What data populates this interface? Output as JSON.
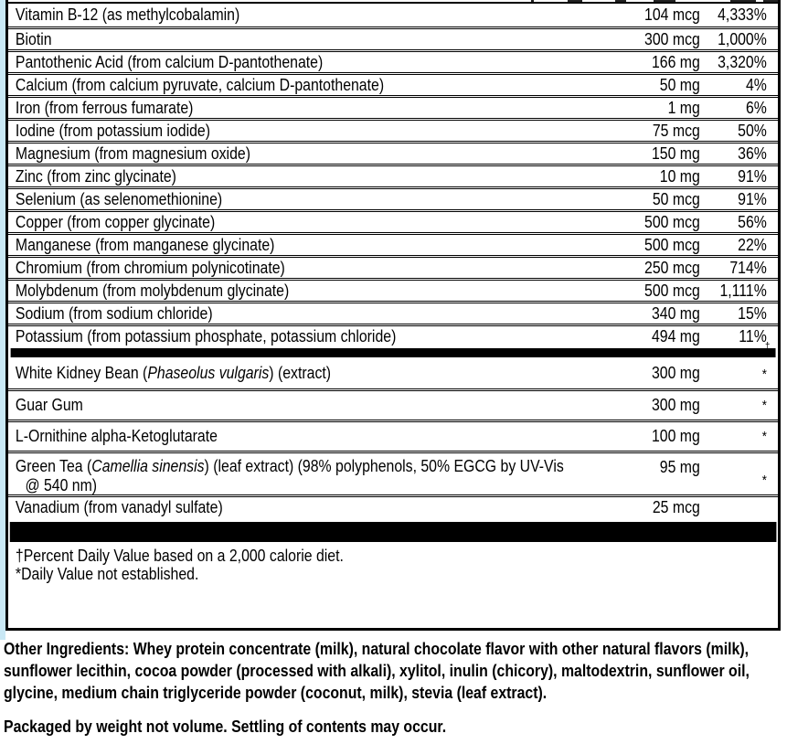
{
  "colors": {
    "accent_blue": "#c9e8f5",
    "bar": "#000000"
  },
  "supplement_facts": {
    "nutrient_rows": [
      {
        "name": [
          {
            "t": "Vitamin B-12 (as methylcobalamin)"
          }
        ],
        "amount": "104 mcg",
        "dv": "4,333%"
      },
      {
        "name": [
          {
            "t": "Biotin"
          }
        ],
        "amount": "300 mcg",
        "dv": "1,000%"
      },
      {
        "name": [
          {
            "t": "Pantothenic Acid (from calcium D-pantothenate)"
          }
        ],
        "amount": "166 mg",
        "dv": "3,320%"
      },
      {
        "name": [
          {
            "t": "Calcium (from calcium pyruvate, calcium D-pantothenate)"
          }
        ],
        "amount": "50 mg",
        "dv": "4%"
      },
      {
        "name": [
          {
            "t": "Iron (from ferrous fumarate)"
          }
        ],
        "amount": "1 mg",
        "dv": "6%"
      },
      {
        "name": [
          {
            "t": "Iodine (from potassium iodide)"
          }
        ],
        "amount": "75 mcg",
        "dv": "50%"
      },
      {
        "name": [
          {
            "t": "Magnesium (from magnesium oxide)"
          }
        ],
        "amount": "150 mg",
        "dv": "36%"
      },
      {
        "name": [
          {
            "t": "Zinc (from zinc glycinate)"
          }
        ],
        "amount": "10 mg",
        "dv": "91%"
      },
      {
        "name": [
          {
            "t": "Selenium (as selenomethionine)"
          }
        ],
        "amount": "50 mcg",
        "dv": "91%"
      },
      {
        "name": [
          {
            "t": "Copper (from copper glycinate)"
          }
        ],
        "amount": "500 mcg",
        "dv": "56%"
      },
      {
        "name": [
          {
            "t": "Manganese (from manganese glycinate)"
          }
        ],
        "amount": "500 mcg",
        "dv": "22%"
      },
      {
        "name": [
          {
            "t": "Chromium (from chromium polynicotinate)"
          }
        ],
        "amount": "250 mcg",
        "dv": "714%"
      },
      {
        "name": [
          {
            "t": "Molybdenum (from molybdenum glycinate)"
          }
        ],
        "amount": "500 mcg",
        "dv": "1,111%"
      },
      {
        "name": [
          {
            "t": "Sodium (from sodium chloride)"
          }
        ],
        "amount": "340 mg",
        "dv": "15%"
      },
      {
        "name": [
          {
            "t": "Potassium (from potassium phosphate, potassium chloride)"
          }
        ],
        "amount": "494 mg",
        "dv": "11%",
        "marker": "†"
      }
    ],
    "botanical_rows": [
      {
        "name": [
          {
            "t": "White Kidney Bean ("
          },
          {
            "t": "Phaseolus vulgaris",
            "i": true
          },
          {
            "t": ") (extract)"
          }
        ],
        "amount": "300 mg",
        "dv": "*",
        "star": true,
        "tall": true
      },
      {
        "name": [
          {
            "t": "Guar Gum"
          }
        ],
        "amount": "300 mg",
        "dv": "*",
        "star": true,
        "tall": true
      },
      {
        "name": [
          {
            "t": "L-Ornithine alpha-Ketoglutarate"
          }
        ],
        "amount": "100 mg",
        "dv": "*",
        "star": true,
        "tall": true
      },
      {
        "name": [
          {
            "t": "Green Tea ("
          },
          {
            "t": "Camellia sinensis",
            "i": true
          },
          {
            "t": ") (leaf extract) (98% polyphenols, 50% EGCG by UV-Vis"
          },
          {
            "br": true
          },
          {
            "t": "@ 540 nm)",
            "indent": true
          }
        ],
        "amount": "95 mg",
        "dv": "*",
        "star": true,
        "wrap": true
      },
      {
        "name": [
          {
            "t": "Vanadium (from vanadyl sulfate)"
          }
        ],
        "amount": "25 mcg",
        "dv": ""
      }
    ],
    "footnotes": [
      "†Percent Daily Value based on a 2,000 calorie diet.",
      "*Daily Value not established."
    ]
  },
  "other_ingredients": {
    "label": "Other Ingredients:",
    "text": " Whey protein concentrate (milk), natural chocolate flavor with other natural flavors (milk), sunflower lecithin, cocoa powder (processed with alkali), xylitol, inulin (chicory), maltodextrin, sunflower oil, glycine, medium chain triglyceride powder (coconut, milk), stevia (leaf extract)."
  },
  "packaged_note": "Packaged by weight not volume. Settling of contents may occur."
}
